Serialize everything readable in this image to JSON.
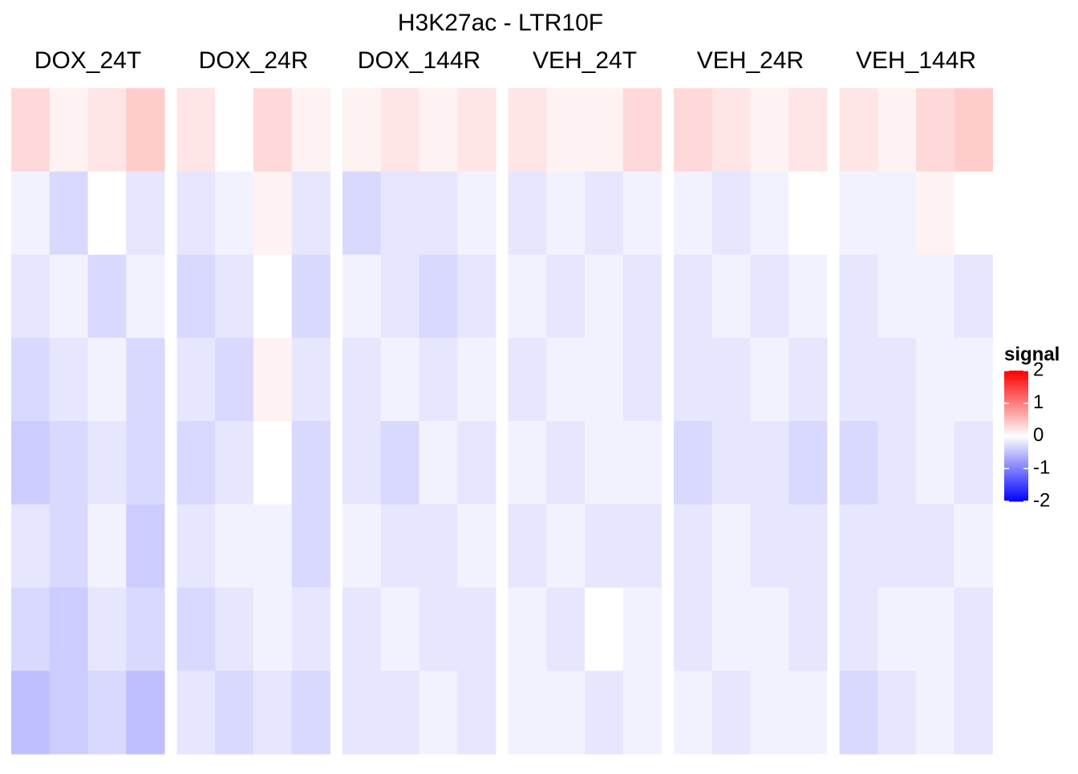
{
  "chart_data": {
    "type": "heatmap",
    "title": "H3K27ac - LTR10F",
    "panels": [
      {
        "name": "DOX_24T",
        "values": [
          [
            0.3,
            0.1,
            0.2,
            0.4
          ],
          [
            -0.1,
            -0.3,
            0.0,
            -0.2
          ],
          [
            -0.2,
            -0.1,
            -0.3,
            -0.1
          ],
          [
            -0.3,
            -0.2,
            -0.1,
            -0.3
          ],
          [
            -0.4,
            -0.3,
            -0.2,
            -0.3
          ],
          [
            -0.2,
            -0.3,
            -0.1,
            -0.4
          ],
          [
            -0.3,
            -0.4,
            -0.2,
            -0.3
          ],
          [
            -0.5,
            -0.4,
            -0.3,
            -0.5
          ]
        ]
      },
      {
        "name": "DOX_24R",
        "values": [
          [
            0.2,
            0.0,
            0.3,
            0.1
          ],
          [
            -0.2,
            -0.1,
            0.1,
            -0.2
          ],
          [
            -0.3,
            -0.2,
            0.0,
            -0.3
          ],
          [
            -0.2,
            -0.3,
            0.1,
            -0.2
          ],
          [
            -0.3,
            -0.2,
            0.0,
            -0.3
          ],
          [
            -0.2,
            -0.1,
            -0.1,
            -0.3
          ],
          [
            -0.3,
            -0.2,
            -0.1,
            -0.2
          ],
          [
            -0.2,
            -0.3,
            -0.2,
            -0.3
          ]
        ]
      },
      {
        "name": "DOX_144R",
        "values": [
          [
            0.1,
            0.2,
            0.1,
            0.2
          ],
          [
            -0.3,
            -0.2,
            -0.2,
            -0.1
          ],
          [
            -0.1,
            -0.2,
            -0.3,
            -0.2
          ],
          [
            -0.2,
            -0.1,
            -0.2,
            -0.1
          ],
          [
            -0.2,
            -0.3,
            -0.1,
            -0.2
          ],
          [
            -0.1,
            -0.2,
            -0.2,
            -0.1
          ],
          [
            -0.2,
            -0.1,
            -0.2,
            -0.2
          ],
          [
            -0.2,
            -0.2,
            -0.1,
            -0.2
          ]
        ]
      },
      {
        "name": "VEH_24T",
        "values": [
          [
            0.2,
            0.1,
            0.1,
            0.3
          ],
          [
            -0.2,
            -0.1,
            -0.2,
            -0.1
          ],
          [
            -0.1,
            -0.2,
            -0.1,
            -0.2
          ],
          [
            -0.2,
            -0.1,
            -0.1,
            -0.2
          ],
          [
            -0.1,
            -0.2,
            -0.1,
            -0.1
          ],
          [
            -0.2,
            -0.1,
            -0.2,
            -0.2
          ],
          [
            -0.1,
            -0.2,
            0.0,
            -0.1
          ],
          [
            -0.1,
            -0.1,
            -0.2,
            -0.1
          ]
        ]
      },
      {
        "name": "VEH_24R",
        "values": [
          [
            0.3,
            0.2,
            0.1,
            0.2
          ],
          [
            -0.1,
            -0.2,
            -0.1,
            0.0
          ],
          [
            -0.2,
            -0.1,
            -0.2,
            -0.1
          ],
          [
            -0.2,
            -0.2,
            -0.1,
            -0.2
          ],
          [
            -0.3,
            -0.2,
            -0.2,
            -0.3
          ],
          [
            -0.2,
            -0.1,
            -0.2,
            -0.2
          ],
          [
            -0.2,
            -0.1,
            -0.1,
            -0.2
          ],
          [
            -0.1,
            -0.2,
            -0.1,
            -0.1
          ]
        ]
      },
      {
        "name": "VEH_144R",
        "values": [
          [
            0.2,
            0.1,
            0.3,
            0.4
          ],
          [
            -0.1,
            -0.1,
            0.1,
            0.0
          ],
          [
            -0.2,
            -0.1,
            -0.1,
            -0.2
          ],
          [
            -0.2,
            -0.2,
            -0.1,
            -0.1
          ],
          [
            -0.3,
            -0.2,
            -0.1,
            -0.2
          ],
          [
            -0.2,
            -0.2,
            -0.2,
            -0.1
          ],
          [
            -0.2,
            -0.1,
            -0.1,
            -0.2
          ],
          [
            -0.3,
            -0.2,
            -0.1,
            -0.2
          ]
        ]
      }
    ],
    "colors": [
      "#0000ff",
      "#ffffff",
      "#ff0000"
    ],
    "lim": [
      -2,
      2
    ],
    "legend": {
      "title": "signal",
      "ticks": [
        2,
        1,
        0,
        -1,
        -2
      ]
    }
  }
}
